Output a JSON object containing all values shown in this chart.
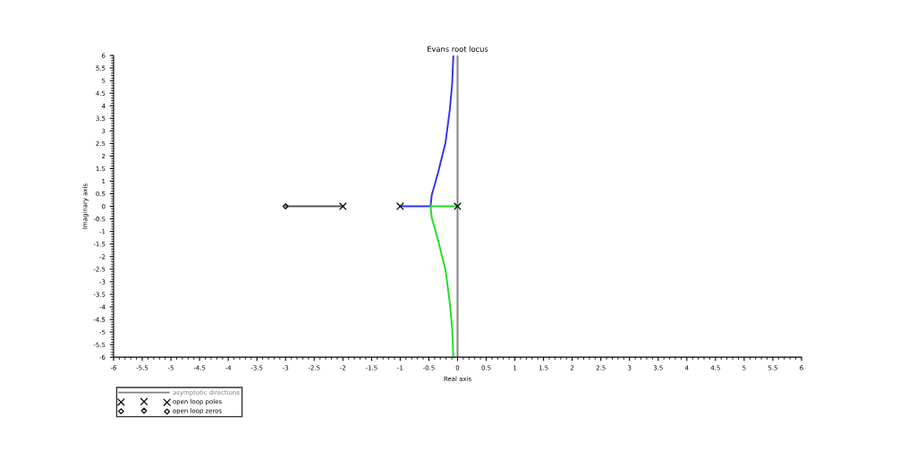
{
  "chart_data": {
    "type": "line",
    "title": "Evans root locus",
    "xlabel": "Real axis",
    "ylabel": "Imaginary axis",
    "xlim": [
      -6,
      6
    ],
    "ylim": [
      -6,
      6
    ],
    "xticks": [
      -6,
      -5.5,
      -5,
      -4.5,
      -4,
      -3.5,
      -3,
      -2.5,
      -2,
      -1.5,
      -1,
      -0.5,
      0,
      0.5,
      1,
      1.5,
      2,
      2.5,
      3,
      3.5,
      4,
      4.5,
      5,
      5.5,
      6
    ],
    "yticks": [
      -6,
      -5.5,
      -5,
      -4.5,
      -4,
      -3.5,
      -3,
      -2.5,
      -2,
      -1.5,
      -1,
      -0.5,
      0,
      0.5,
      1,
      1.5,
      2,
      2.5,
      3,
      3.5,
      4,
      4.5,
      5,
      5.5,
      6
    ],
    "grid": false,
    "legend": "bottom left",
    "series": [
      {
        "name": "asymptotic directions",
        "color": "#808080",
        "marker": "none",
        "x": [
          0,
          0
        ],
        "values": [
          -6,
          6
        ]
      },
      {
        "color": "#555555",
        "marker": "none",
        "x": [
          -3,
          -2
        ],
        "values": [
          0,
          0
        ]
      },
      {
        "color": "#3333ee",
        "marker": "none",
        "x": [
          -1,
          -0.47,
          -0.45,
          -0.34,
          -0.21,
          -0.135,
          -0.094,
          -0.073
        ],
        "values": [
          0,
          0,
          0.45,
          1.34,
          2.53,
          3.84,
          4.87,
          6
        ]
      },
      {
        "color": "#22dd22",
        "marker": "none",
        "x": [
          0,
          -0.47,
          -0.45,
          -0.34,
          -0.21,
          -0.135,
          -0.094,
          -0.073
        ],
        "values": [
          0,
          0,
          -0.45,
          -1.34,
          -2.53,
          -3.84,
          -4.87,
          -6
        ]
      },
      {
        "name": "open loop poles",
        "type": "scatter",
        "color": "#000000",
        "marker": "cross",
        "x": [
          -2,
          -1,
          0
        ],
        "values": [
          0,
          0,
          0
        ]
      },
      {
        "name": "open loop zeros",
        "type": "scatter",
        "color": "#000000",
        "marker": "diamond",
        "x": [
          -3
        ],
        "values": [
          0
        ]
      }
    ]
  }
}
